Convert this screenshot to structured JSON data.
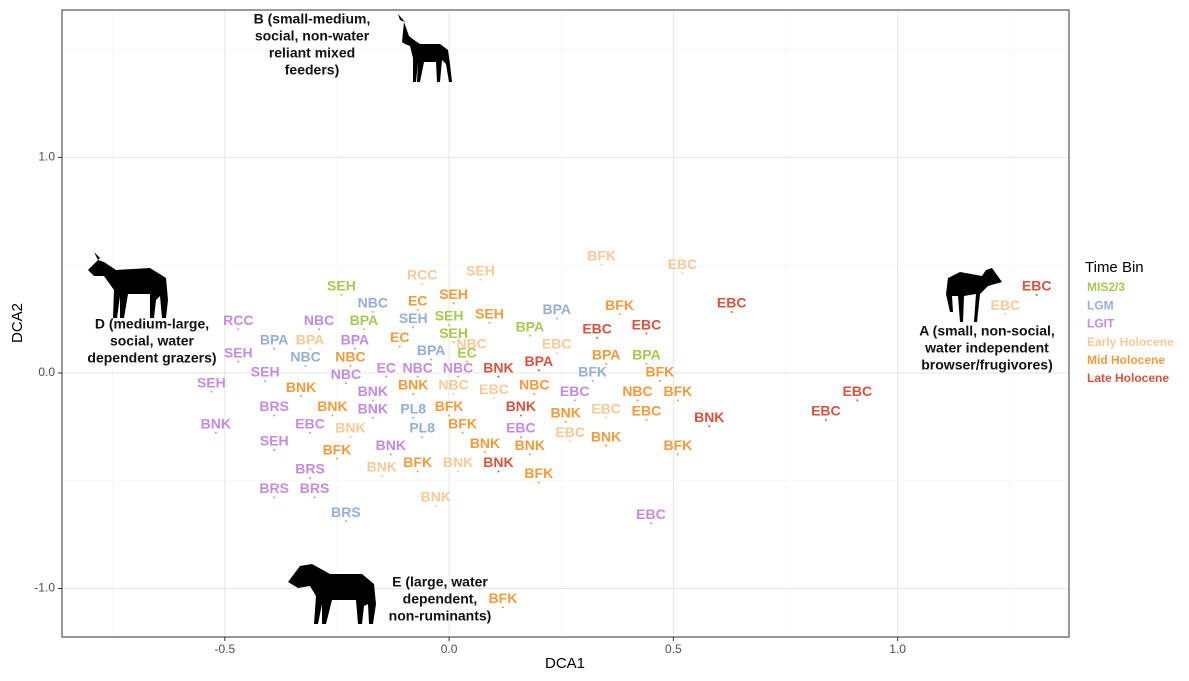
{
  "chart_data": {
    "type": "scatter",
    "x_label": "DCA1",
    "y_label": "DCA2",
    "xlim": [
      -0.863,
      1.382
    ],
    "ylim": [
      -1.225,
      1.684
    ],
    "xticks": [
      -0.5,
      {
        "value": 0,
        "label": "0.0"
      },
      0.5,
      {
        "value": 1,
        "label": "1.0"
      }
    ],
    "yticks": [
      {
        "value": -1,
        "label": "-1.0"
      },
      {
        "value": 0,
        "label": "0.0"
      },
      {
        "value": 1,
        "label": "1.0"
      }
    ],
    "grid": true,
    "legend_title": "Time Bin",
    "legend": "right",
    "annotations": [
      {
        "lines": [
          "B (small-medium,",
          "social, non-water",
          "reliant mixed",
          "feeders)"
        ]
      },
      {
        "lines": [
          "D (medium-large,",
          "social, water",
          "dependent grazers)"
        ]
      },
      {
        "lines": [
          "A (small, non-social,",
          "water independent",
          "browser/frugivores)"
        ]
      },
      {
        "lines": [
          "E (large, water",
          "dependent,",
          "non-ruminants)"
        ]
      }
    ],
    "series": [
      {
        "name": "MIS2/3",
        "color": "#a6c94f",
        "labels": [
          "SEH",
          "BPA",
          "SEH",
          "SEH",
          "EC",
          "BPA",
          "BPA"
        ],
        "x": [
          -0.24,
          -0.19,
          0.0,
          0.01,
          0.04,
          0.18,
          0.44
        ],
        "values": [
          0.4,
          0.24,
          0.26,
          0.18,
          0.09,
          0.21,
          0.08
        ]
      },
      {
        "name": "LGM",
        "color": "#94afd6",
        "labels": [
          "NBC",
          "SEH",
          "BPA",
          "NBC",
          "BPA",
          "BPA",
          "BFK",
          "PL8",
          "PL8",
          "BRS"
        ],
        "x": [
          -0.17,
          -0.08,
          -0.39,
          -0.32,
          -0.04,
          0.24,
          0.32,
          -0.08,
          -0.06,
          -0.23
        ],
        "values": [
          0.32,
          0.25,
          0.15,
          0.07,
          0.1,
          0.29,
          0.0,
          -0.17,
          -0.26,
          -0.65
        ]
      },
      {
        "name": "LGIT",
        "color": "#c38ce0",
        "labels": [
          "RCC",
          "NBC",
          "BPA",
          "SEH",
          "SEH",
          "SEH",
          "NBC",
          "EC",
          "NBC",
          "NBC",
          "BNK",
          "BNK",
          "BNK",
          "EBC",
          "SEH",
          "BNK",
          "BRS",
          "BRS",
          "BRS",
          "BRS",
          "EBC",
          "EBC",
          "EBC"
        ],
        "x": [
          -0.47,
          -0.29,
          -0.21,
          -0.47,
          -0.41,
          -0.53,
          -0.23,
          -0.14,
          -0.07,
          0.02,
          -0.17,
          -0.17,
          -0.52,
          -0.31,
          -0.39,
          -0.13,
          -0.39,
          -0.31,
          -0.39,
          -0.3,
          0.28,
          0.16,
          0.45
        ],
        "values": [
          0.24,
          0.24,
          0.15,
          0.09,
          0.0,
          -0.05,
          -0.01,
          0.02,
          0.02,
          0.02,
          -0.09,
          -0.17,
          -0.24,
          -0.24,
          -0.32,
          -0.34,
          -0.16,
          -0.45,
          -0.54,
          -0.54,
          -0.09,
          -0.26,
          -0.66
        ]
      },
      {
        "name": "Early Holocene",
        "color": "#f6c999",
        "labels": [
          "RCC",
          "SEH",
          "BPA",
          "NBC",
          "EBC",
          "EBC",
          "NBC",
          "BNK",
          "BNK",
          "BNK",
          "EBC",
          "EBC",
          "BNK",
          "BFK",
          "EBC",
          "EBC"
        ],
        "x": [
          -0.06,
          0.07,
          -0.31,
          0.05,
          0.24,
          0.1,
          0.01,
          -0.22,
          -0.15,
          0.02,
          0.35,
          0.27,
          -0.03,
          0.34,
          0.52,
          1.24
        ],
        "values": [
          0.45,
          0.47,
          0.15,
          0.13,
          0.13,
          -0.08,
          -0.06,
          -0.26,
          -0.44,
          -0.42,
          -0.17,
          -0.28,
          -0.58,
          0.54,
          0.5,
          0.31
        ]
      },
      {
        "name": "Mid Holocene",
        "color": "#f39a3c",
        "labels": [
          "EC",
          "SEH",
          "SEH",
          "EC",
          "NBC",
          "BNK",
          "BNK",
          "BNK",
          "BFK",
          "BFK",
          "BFK",
          "BFK",
          "BNK",
          "BNK",
          "BFK",
          "BNK",
          "BNK",
          "BFK",
          "NBC",
          "NBC",
          "BPA",
          "BFK",
          "BFK",
          "EBC",
          "BFK",
          "BFK"
        ],
        "x": [
          -0.07,
          0.01,
          0.09,
          -0.11,
          -0.22,
          -0.33,
          -0.26,
          -0.08,
          0.0,
          0.03,
          -0.25,
          -0.07,
          0.08,
          0.18,
          0.2,
          0.26,
          0.35,
          0.38,
          0.19,
          0.42,
          0.35,
          0.47,
          0.51,
          0.44,
          0.51,
          0.12
        ],
        "values": [
          0.33,
          0.36,
          0.27,
          0.16,
          0.07,
          -0.07,
          -0.16,
          -0.06,
          -0.16,
          -0.24,
          -0.36,
          -0.42,
          -0.33,
          -0.34,
          -0.47,
          -0.19,
          -0.3,
          0.31,
          -0.06,
          -0.09,
          0.08,
          0.0,
          -0.09,
          -0.18,
          -0.34,
          -1.05
        ]
      },
      {
        "name": "Late Holocene",
        "color": "#d8533f",
        "labels": [
          "BNK",
          "BPA",
          "EBC",
          "EBC",
          "EBC",
          "BNK",
          "BNK",
          "BNK",
          "EBC",
          "EBC",
          "EBC"
        ],
        "x": [
          0.11,
          0.2,
          0.33,
          0.44,
          0.63,
          0.16,
          0.11,
          0.58,
          0.91,
          0.84,
          1.31
        ],
        "values": [
          0.02,
          0.05,
          0.2,
          0.22,
          0.32,
          -0.16,
          -0.42,
          -0.21,
          -0.09,
          -0.18,
          0.4
        ]
      }
    ]
  }
}
